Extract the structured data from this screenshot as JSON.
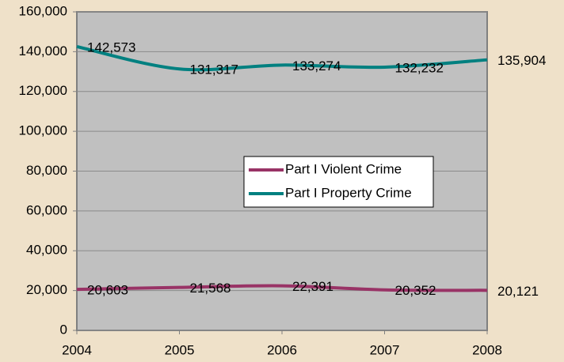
{
  "chart_data": {
    "type": "line",
    "categories": [
      "2004",
      "2005",
      "2006",
      "2007",
      "2008"
    ],
    "series": [
      {
        "name": "Part I Violent Crime",
        "color": "#993366",
        "values": [
          20603,
          21568,
          22391,
          20352,
          20121
        ],
        "value_labels": [
          "20,603",
          "21,568",
          "22,391",
          "20,352",
          "20,121"
        ]
      },
      {
        "name": "Part I Property Crime",
        "color": "#008080",
        "values": [
          142573,
          131317,
          133274,
          132232,
          135904
        ],
        "value_labels": [
          "142,573",
          "131,317",
          "133,274",
          "132,232",
          "135,904"
        ]
      }
    ],
    "ylim": [
      0,
      160000
    ],
    "yticks": [
      0,
      {
        "value": 20000,
        "label": "20,000"
      },
      {
        "value": 40000,
        "label": "40,000"
      },
      {
        "value": 60000,
        "label": "60,000"
      },
      {
        "value": 80000,
        "label": "80,000"
      },
      {
        "value": 100000,
        "label": "100,000"
      },
      {
        "value": 120000,
        "label": "120,000"
      },
      {
        "value": 140000,
        "label": "140,000"
      },
      {
        "value": 160000,
        "label": "160,000"
      }
    ],
    "grid": true
  }
}
